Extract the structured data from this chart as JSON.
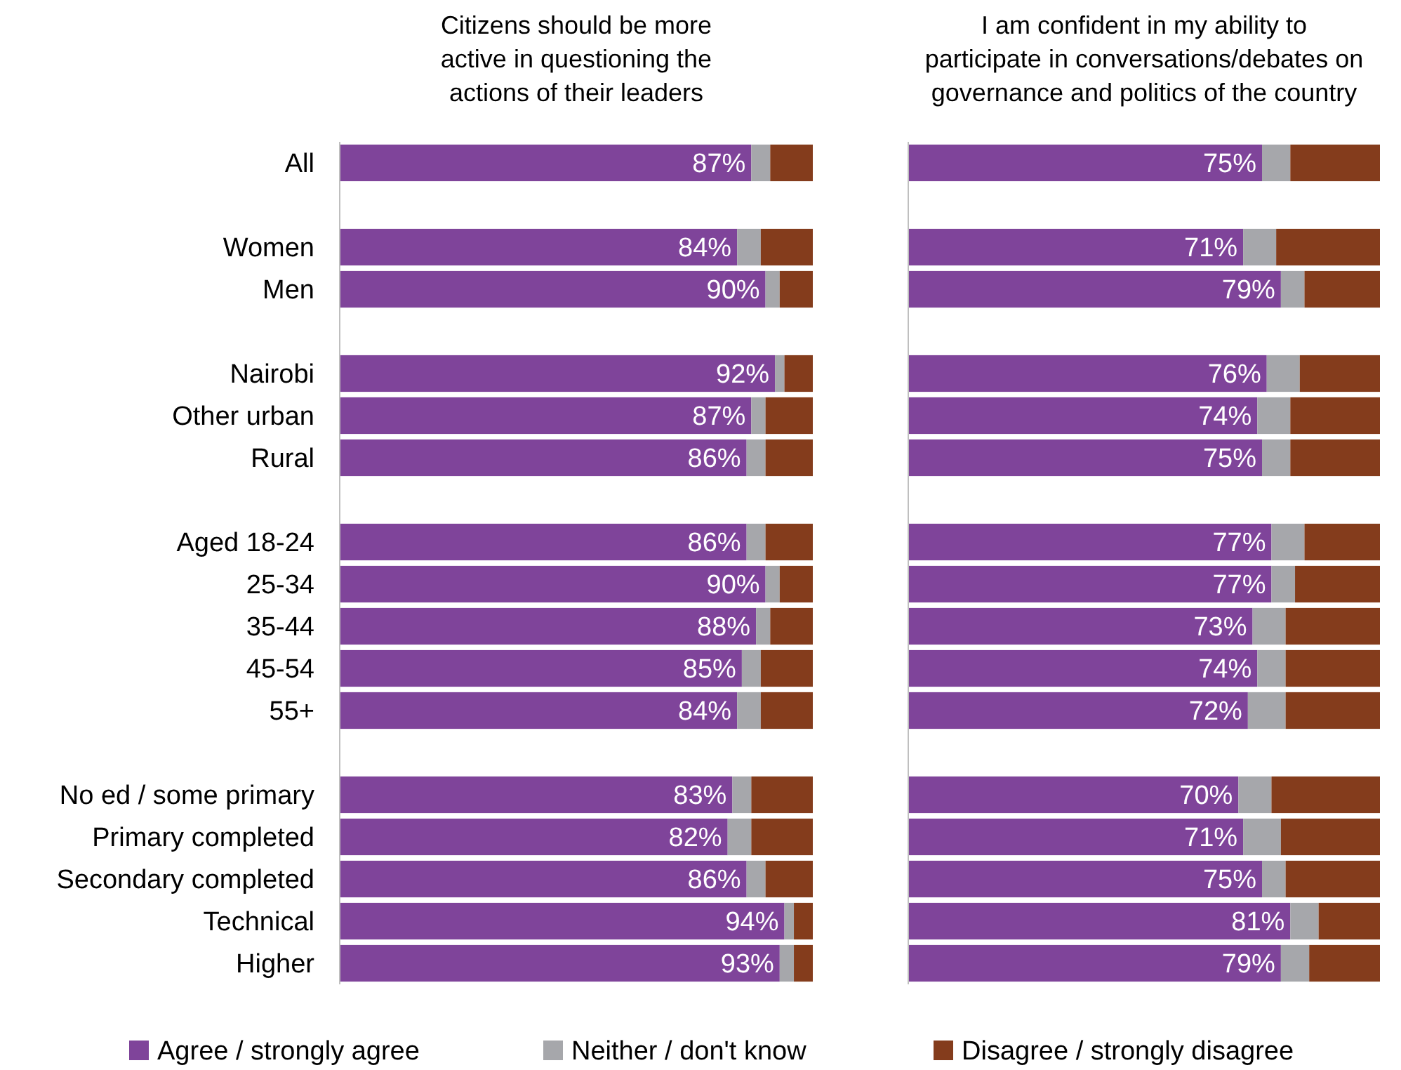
{
  "chart_data": [
    {
      "type": "bar",
      "orientation": "horizontal",
      "stacked": true,
      "title": "Citizens should be more active in questioning the actions of their leaders",
      "categories": [
        "All",
        null,
        "Women",
        "Men",
        null,
        "Nairobi",
        "Other urban",
        "Rural",
        null,
        "Aged 18-24",
        "25-34",
        "35-44",
        "45-54",
        "55+",
        null,
        "No ed / some primary",
        "Primary completed",
        "Secondary completed",
        "Technical",
        "Higher"
      ],
      "xlim": [
        0,
        100
      ],
      "legend": "bottom",
      "series": [
        {
          "name": "Agree / strongly agree",
          "color": "#7f449a",
          "values": [
            87,
            null,
            84,
            90,
            null,
            92,
            87,
            86,
            null,
            86,
            90,
            88,
            85,
            84,
            null,
            83,
            82,
            86,
            94,
            93
          ],
          "value_labels": [
            "87%",
            null,
            "84%",
            "90%",
            null,
            "92%",
            "87%",
            "86%",
            null,
            "86%",
            "90%",
            "88%",
            "85%",
            "84%",
            null,
            "83%",
            "82%",
            "86%",
            "94%",
            "93%"
          ]
        },
        {
          "name": "Neither / don't know",
          "color": "#a6a7ab",
          "values": [
            4,
            null,
            5,
            3,
            null,
            2,
            3,
            4,
            null,
            4,
            3,
            3,
            4,
            5,
            null,
            4,
            5,
            4,
            2,
            3
          ]
        },
        {
          "name": "Disagree / strongly disagree",
          "color": "#843c1c",
          "values": [
            9,
            null,
            11,
            7,
            null,
            6,
            10,
            10,
            null,
            10,
            7,
            9,
            11,
            11,
            null,
            13,
            13,
            10,
            4,
            4
          ]
        }
      ]
    },
    {
      "type": "bar",
      "orientation": "horizontal",
      "stacked": true,
      "title": "I am confident in my ability to participate in conversations/debates on governance and politics of the country",
      "categories": [
        null,
        null,
        null,
        null,
        null,
        null,
        null,
        null,
        null,
        null,
        null,
        null,
        null,
        null,
        null,
        null,
        null,
        null,
        null,
        null
      ],
      "xlim": [
        0,
        100
      ],
      "series": [
        {
          "color": "#7f449a",
          "values": [
            75,
            null,
            71,
            79,
            null,
            76,
            74,
            75,
            null,
            77,
            77,
            73,
            74,
            72,
            null,
            70,
            71,
            75,
            81,
            79
          ],
          "value_labels": [
            "75%",
            null,
            "71%",
            "79%",
            null,
            "76%",
            "74%",
            "75%",
            null,
            "77%",
            "77%",
            "73%",
            "74%",
            "72%",
            null,
            "70%",
            "71%",
            "75%",
            "81%",
            "79%"
          ]
        },
        {
          "color": "#a6a7ab",
          "values": [
            6,
            null,
            7,
            5,
            null,
            7,
            7,
            6,
            null,
            7,
            5,
            7,
            6,
            8,
            null,
            7,
            8,
            5,
            6,
            6
          ]
        },
        {
          "color": "#843c1c",
          "values": [
            19,
            null,
            22,
            16,
            null,
            17,
            19,
            19,
            null,
            16,
            18,
            20,
            20,
            20,
            null,
            23,
            21,
            20,
            13,
            15
          ]
        }
      ]
    }
  ]
}
